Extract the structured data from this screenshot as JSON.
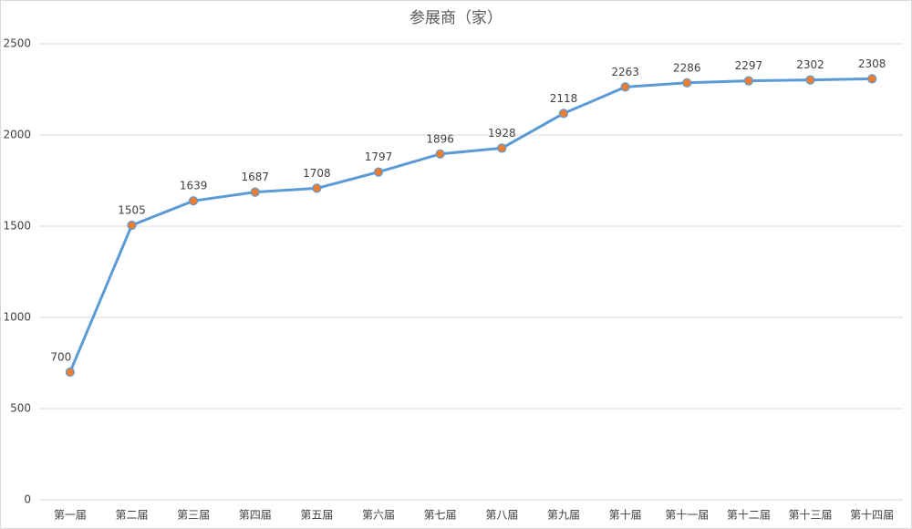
{
  "chart_data": {
    "type": "line",
    "title": "参展商（家）",
    "categories": [
      "第一届",
      "第二届",
      "第三届",
      "第四届",
      "第五届",
      "第六届",
      "第七届",
      "第八届",
      "第九届",
      "第十届",
      "第十一届",
      "第十二届",
      "第十三届",
      "第十四届"
    ],
    "series": [
      {
        "name": "参展商（家）",
        "color": "#5b9bd5",
        "marker_color": "#ed7d31",
        "values": [
          700,
          1505,
          1639,
          1687,
          1708,
          1797,
          1896,
          1928,
          2118,
          2263,
          2286,
          2297,
          2302,
          2308
        ]
      }
    ],
    "ylim": [
      0,
      2500
    ],
    "yticks": [
      0,
      500,
      1000,
      1500,
      2000,
      2500
    ],
    "grid": true
  }
}
